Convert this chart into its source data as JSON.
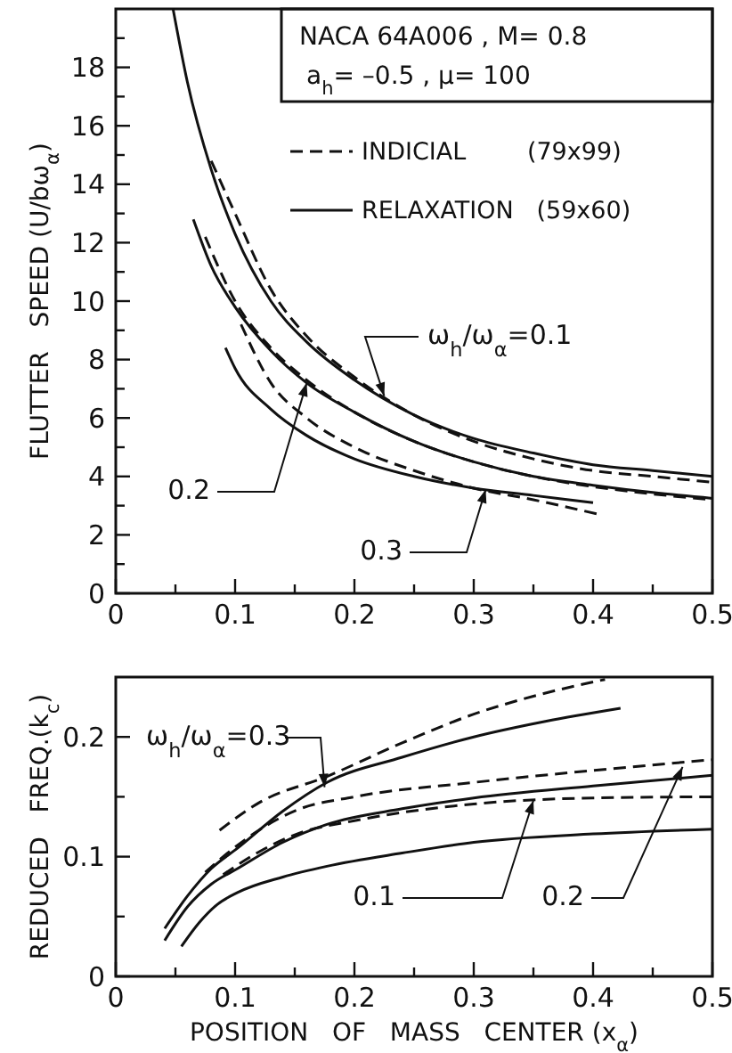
{
  "chart_data": [
    {
      "type": "line",
      "title": "NACA  64A006 , M= 0.8",
      "subtitle": "a$_{h}$= –0.5 , μ= 100",
      "ylabel": "FLUTTER   SPEED (U/bω$_{α}$)",
      "xlim": [
        0,
        0.5
      ],
      "ylim": [
        0,
        20
      ],
      "xticks": [
        0,
        {
          "value": 0.05,
          "label": null
        },
        {
          "value": 0.1,
          "label": "0.1"
        },
        {
          "value": 0.15,
          "label": null
        },
        {
          "value": 0.2,
          "label": "0.2"
        },
        {
          "value": 0.25,
          "label": null
        },
        {
          "value": 0.3,
          "label": "0.3"
        },
        {
          "value": 0.35,
          "label": null
        },
        {
          "value": 0.4,
          "label": "0.4"
        },
        {
          "value": 0.45,
          "label": null
        },
        {
          "value": 0.5,
          "label": "0.5"
        }
      ],
      "yticks": [
        0,
        {
          "value": 1,
          "label": null
        },
        2,
        {
          "value": 3,
          "label": null
        },
        4,
        {
          "value": 5,
          "label": null
        },
        6,
        {
          "value": 7,
          "label": null
        },
        8,
        {
          "value": 9,
          "label": null
        },
        10,
        {
          "value": 11,
          "label": null
        },
        12,
        {
          "value": 13,
          "label": null
        },
        14,
        {
          "value": 15,
          "label": null
        },
        16,
        {
          "value": 17,
          "label": null
        },
        18,
        {
          "value": 19,
          "label": null
        }
      ],
      "legend": "top right",
      "annotations": [
        {
          "text": "ω$_{h}$/ω$_{α}$=0.1",
          "x": 0.225,
          "y": 6.75
        },
        {
          "text": "0.2",
          "x": 0.16,
          "y": 7.2
        },
        {
          "text": "0.3",
          "x": 0.31,
          "y": 3.55
        }
      ],
      "series": [
        {
          "name": "INDICIAL        (79x99)",
          "color": "#111111",
          "line_style": "dashed",
          "x": [
            0.08,
            0.1,
            0.13,
            0.16,
            0.2,
            0.25,
            0.3,
            0.35,
            0.4,
            0.45,
            0.5
          ],
          "values": [
            14.8,
            13,
            10.4,
            8.8,
            7.4,
            6.1,
            5.2,
            4.6,
            4.2,
            4.0,
            3.8
          ]
        },
        {
          "name": "RELAXATION   (59x60)",
          "color": "#111111",
          "line_style": "solid",
          "x": [
            0.048,
            0.06,
            0.08,
            0.1,
            0.13,
            0.16,
            0.2,
            0.25,
            0.3,
            0.35,
            0.4,
            0.45,
            0.5
          ],
          "values": [
            20,
            17.5,
            14.5,
            12.3,
            10,
            8.6,
            7.3,
            6.1,
            5.3,
            4.8,
            4.4,
            4.2,
            4.0
          ]
        },
        {
          "color": "#111111",
          "line_style": "dashed",
          "x": [
            0.075,
            0.1,
            0.13,
            0.16,
            0.2,
            0.25,
            0.3,
            0.35,
            0.4,
            0.45,
            0.5
          ],
          "values": [
            12.2,
            10,
            8.4,
            7.3,
            6.2,
            5.2,
            4.5,
            4.0,
            3.65,
            3.4,
            3.2
          ]
        },
        {
          "color": "#111111",
          "line_style": "solid",
          "x": [
            0.065,
            0.08,
            0.1,
            0.13,
            0.16,
            0.2,
            0.25,
            0.3,
            0.35,
            0.4,
            0.45,
            0.5
          ],
          "values": [
            12.8,
            11.2,
            9.8,
            8.3,
            7.2,
            6.2,
            5.2,
            4.5,
            4.0,
            3.7,
            3.45,
            3.25
          ]
        },
        {
          "color": "#111111",
          "line_style": "dashed",
          "x": [
            0.105,
            0.13,
            0.16,
            0.2,
            0.25,
            0.3,
            0.35,
            0.405
          ],
          "values": [
            9.2,
            7.2,
            6,
            5,
            4.2,
            3.6,
            3.2,
            2.7
          ]
        },
        {
          "color": "#111111",
          "line_style": "solid",
          "x": [
            0.092,
            0.1,
            0.13,
            0.16,
            0.2,
            0.25,
            0.3,
            0.35,
            0.4
          ],
          "values": [
            8.4,
            7.7,
            6.3,
            5.4,
            4.6,
            4.0,
            3.6,
            3.35,
            3.1
          ]
        }
      ]
    },
    {
      "type": "line",
      "xlabel": "POSITION   OF   MASS   CENTER (x$_{α}$)",
      "ylabel": "REDUCED   FREQ.(k$_{c}$)",
      "xlim": [
        0,
        0.5
      ],
      "ylim": [
        0,
        0.25
      ],
      "xticks": [
        0,
        {
          "value": 0.05,
          "label": null
        },
        {
          "value": 0.1,
          "label": "0.1"
        },
        {
          "value": 0.15,
          "label": null
        },
        {
          "value": 0.2,
          "label": "0.2"
        },
        {
          "value": 0.25,
          "label": null
        },
        {
          "value": 0.3,
          "label": "0.3"
        },
        {
          "value": 0.35,
          "label": null
        },
        {
          "value": 0.4,
          "label": "0.4"
        },
        {
          "value": 0.45,
          "label": null
        },
        {
          "value": 0.5,
          "label": "0.5"
        }
      ],
      "yticks": [
        0,
        {
          "value": 0.05,
          "label": null
        },
        {
          "value": 0.1,
          "label": "0.1"
        },
        {
          "value": 0.15,
          "label": null
        },
        {
          "value": 0.2,
          "label": "0.2"
        }
      ],
      "annotations": [
        {
          "text": "ω$_{h}$/ω$_{α}$=0.3",
          "x": 0.175,
          "y": 0.158
        },
        {
          "text": "0.1",
          "x": 0.35,
          "y": 0.147
        },
        {
          "text": "0.2",
          "x": 0.475,
          "y": 0.175
        }
      ],
      "series": [
        {
          "color": "#111111",
          "line_style": "dashed",
          "x": [
            0.087,
            0.12,
            0.177,
            0.24,
            0.3,
            0.35,
            0.41
          ],
          "values": [
            0.122,
            0.145,
            0.167,
            0.195,
            0.219,
            0.234,
            0.248
          ]
        },
        {
          "color": "#111111",
          "line_style": "solid",
          "x": [
            0.041,
            0.06,
            0.08,
            0.102,
            0.14,
            0.177,
            0.24,
            0.3,
            0.36,
            0.423
          ],
          "values": [
            0.04,
            0.067,
            0.09,
            0.107,
            0.138,
            0.162,
            0.183,
            0.2,
            0.213,
            0.224
          ]
        },
        {
          "color": "#111111",
          "line_style": "dashed",
          "x": [
            0.075,
            0.1,
            0.152,
            0.2,
            0.3,
            0.4,
            0.5
          ],
          "values": [
            0.087,
            0.108,
            0.139,
            0.15,
            0.162,
            0.172,
            0.181
          ]
        },
        {
          "color": "#111111",
          "line_style": "solid",
          "x": [
            0.041,
            0.06,
            0.08,
            0.102,
            0.14,
            0.177,
            0.24,
            0.3,
            0.4,
            0.5
          ],
          "values": [
            0.03,
            0.058,
            0.077,
            0.09,
            0.112,
            0.127,
            0.14,
            0.149,
            0.159,
            0.168
          ]
        },
        {
          "color": "#111111",
          "line_style": "dashed",
          "x": [
            0.09,
            0.12,
            0.152,
            0.2,
            0.3,
            0.4,
            0.5
          ],
          "values": [
            0.085,
            0.104,
            0.119,
            0.13,
            0.144,
            0.149,
            0.15
          ]
        },
        {
          "color": "#111111",
          "line_style": "solid",
          "x": [
            0.055,
            0.07,
            0.085,
            0.102,
            0.14,
            0.177,
            0.24,
            0.3,
            0.4,
            0.5
          ],
          "values": [
            0.025,
            0.045,
            0.06,
            0.07,
            0.083,
            0.092,
            0.103,
            0.112,
            0.119,
            0.123
          ]
        }
      ]
    }
  ]
}
